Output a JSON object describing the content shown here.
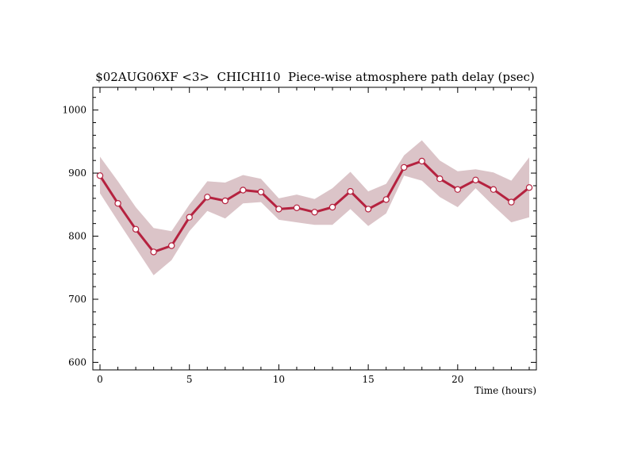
{
  "chart_data": {
    "type": "line",
    "title": "$02AUG06XF <3>  CHICHI10  Piece-wise atmosphere path delay (psec)",
    "xlabel": "Time (hours)",
    "ylabel": "",
    "xlim": [
      -0.4,
      24.4
    ],
    "ylim": [
      588,
      1036
    ],
    "x_ticks": [
      0,
      5,
      10,
      15,
      20
    ],
    "y_ticks": [
      600,
      700,
      800,
      900,
      1000
    ],
    "grid": false,
    "colors": {
      "line": "#b5223f",
      "band": "#dbc4c8",
      "marker_fill": "#ffffff",
      "marker_stroke": "#b5223f"
    },
    "series": [
      {
        "x": [
          0,
          1,
          2,
          3,
          4,
          5,
          6,
          7,
          8,
          9,
          10,
          11,
          12,
          13,
          14,
          15,
          16,
          17,
          18,
          19,
          20,
          21,
          22,
          23,
          24
        ],
        "values": [
          896,
          852,
          811,
          775,
          785,
          830,
          862,
          856,
          873,
          870,
          843,
          845,
          838,
          846,
          871,
          843,
          858,
          909,
          919,
          891,
          874,
          889,
          874,
          854,
          877
        ],
        "upper": [
          926,
          887,
          846,
          813,
          808,
          850,
          887,
          885,
          897,
          891,
          860,
          866,
          859,
          876,
          902,
          871,
          883,
          928,
          952,
          920,
          903,
          906,
          901,
          888,
          925
        ],
        "lower": [
          868,
          824,
          781,
          738,
          762,
          808,
          840,
          828,
          852,
          854,
          826,
          822,
          818,
          818,
          843,
          816,
          836,
          896,
          888,
          862,
          846,
          876,
          848,
          822,
          830
        ]
      }
    ]
  }
}
